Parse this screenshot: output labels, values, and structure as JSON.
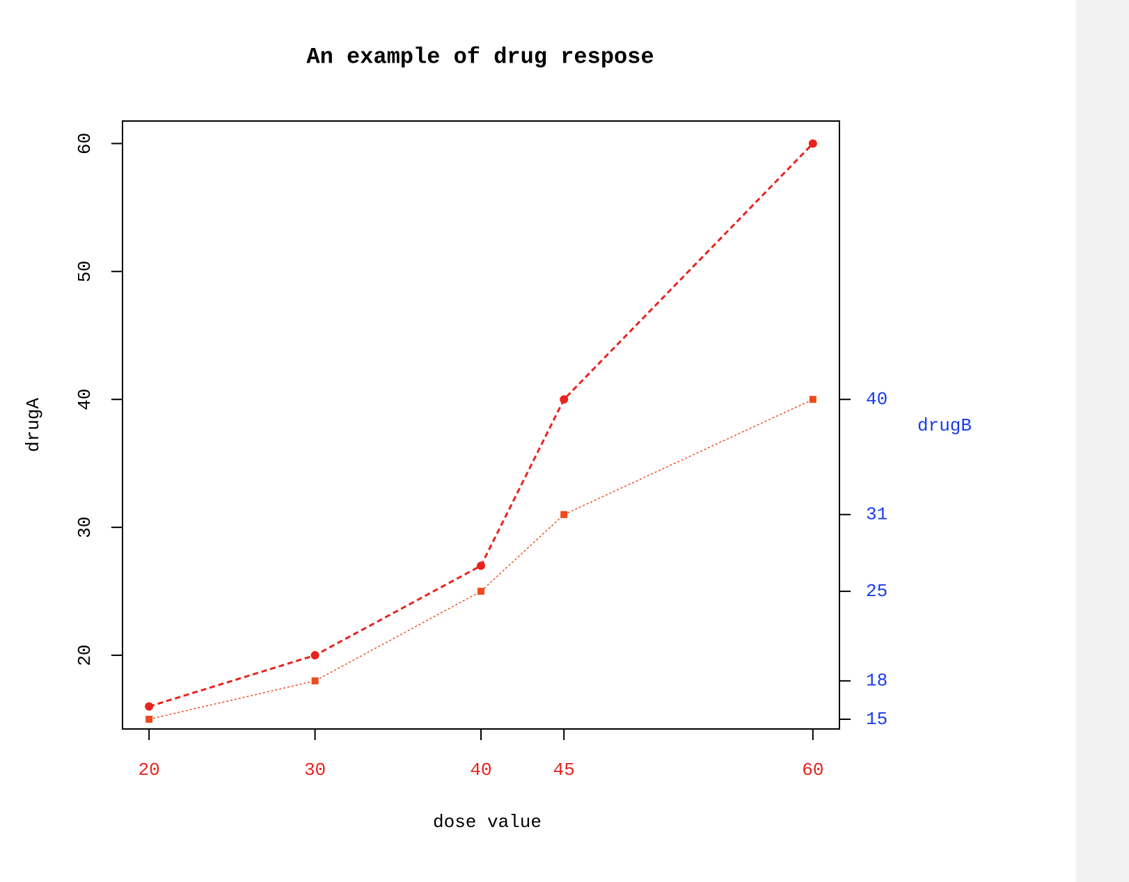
{
  "chart_data": {
    "type": "line",
    "title": "An example of drug respose",
    "xlabel": "dose value",
    "x": [
      20,
      30,
      40,
      45,
      60
    ],
    "series": [
      {
        "name": "drugA",
        "color": "#e8231e",
        "values": [
          16,
          20,
          27,
          40,
          60
        ],
        "line_style": "dashed",
        "marker": "circle"
      },
      {
        "name": "drugB",
        "color": "#f04a1e",
        "values": [
          15,
          18,
          25,
          31,
          40
        ],
        "line_style": "dotted",
        "marker": "square",
        "axis": "y2"
      }
    ],
    "xlim": [
      18.4,
      61.6
    ],
    "xticks": [
      20,
      30,
      40,
      45,
      60
    ],
    "xtick_color": "#e8231e",
    "ylim": [
      14.24,
      61.76
    ],
    "yticks": [
      20,
      30,
      40,
      50,
      60
    ],
    "y2lim": [
      14.24,
      61.76
    ],
    "y2ticks": [
      15,
      18,
      25,
      31,
      40
    ],
    "y2tick_color": "#1a3cf0",
    "grid": false
  }
}
